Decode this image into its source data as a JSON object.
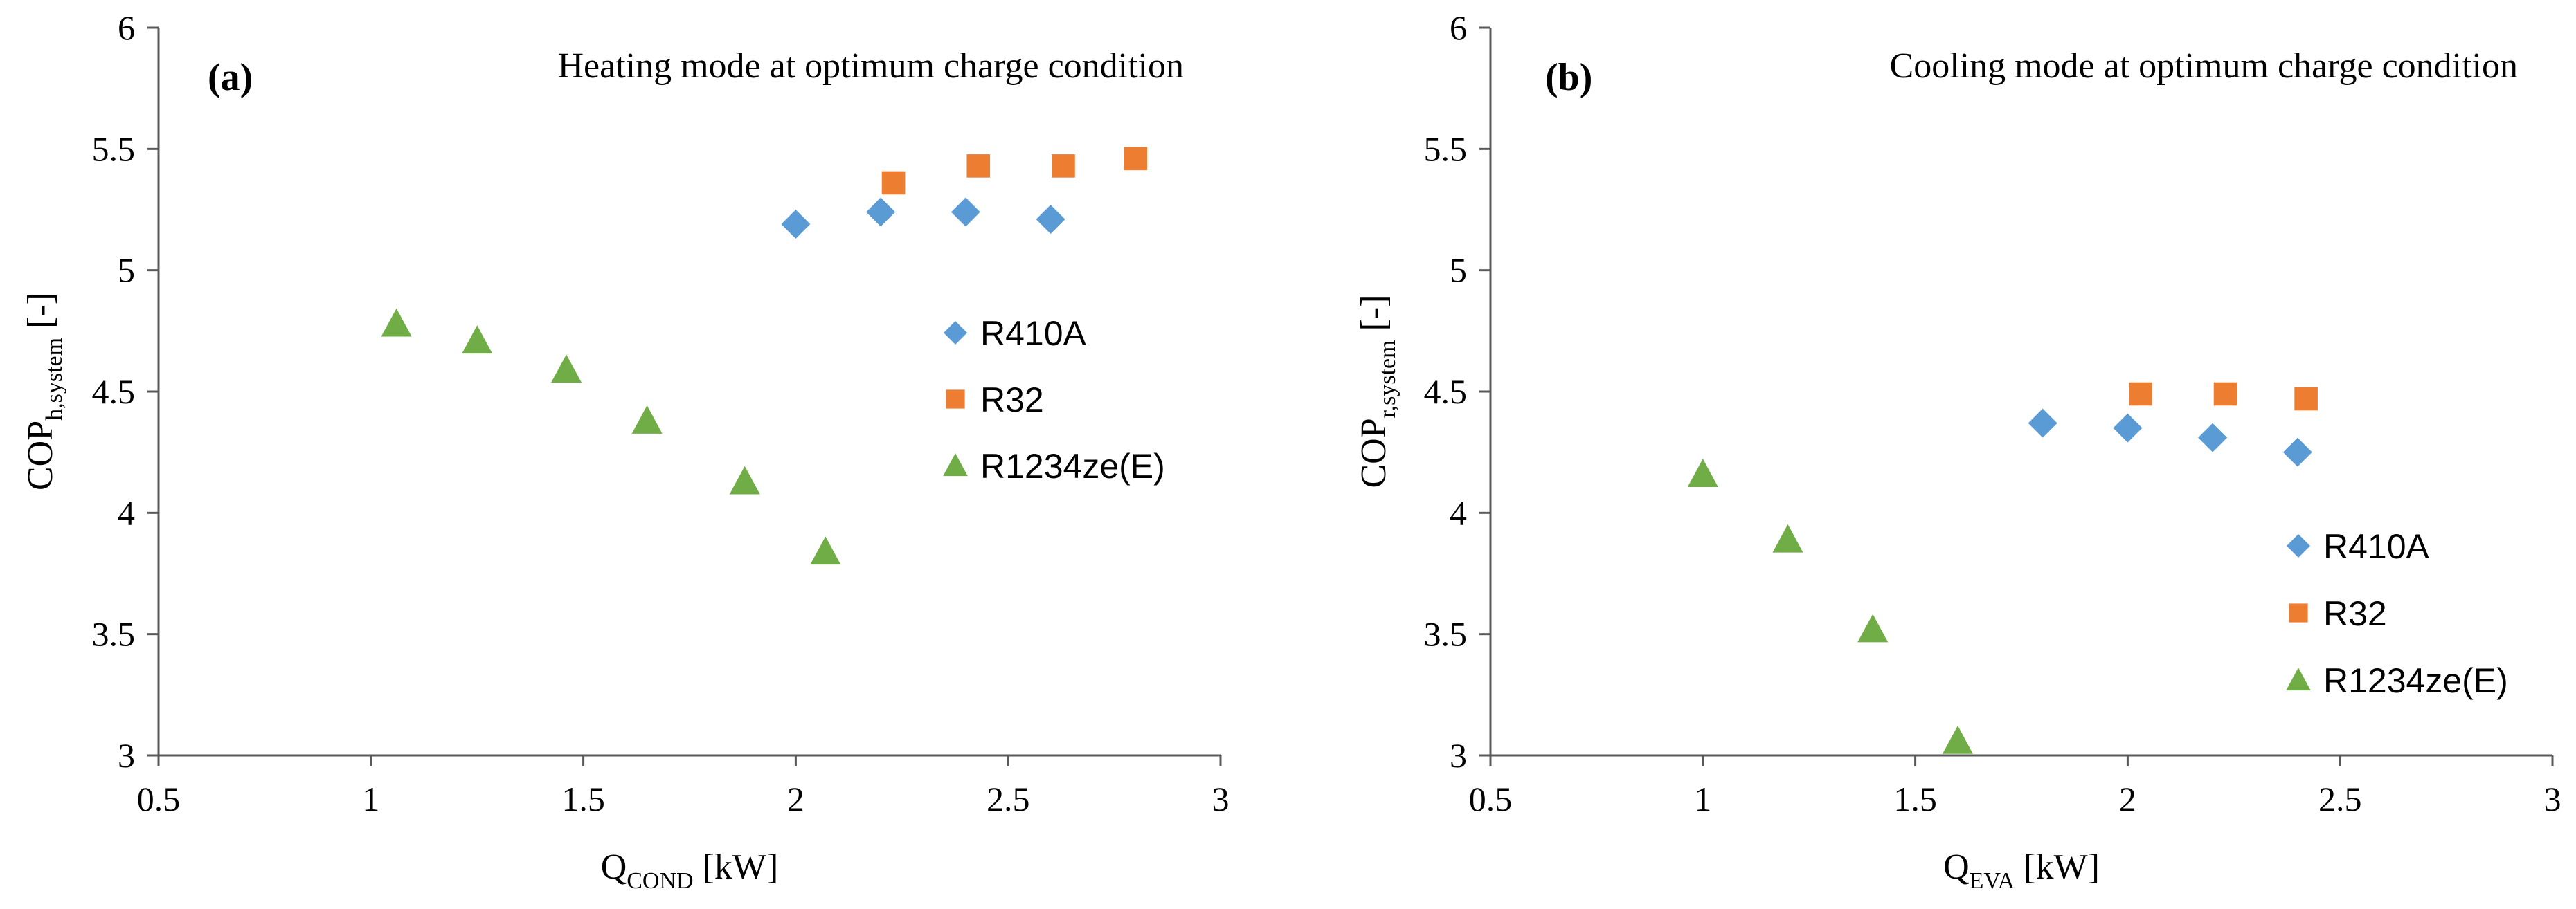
{
  "chart_data": [
    {
      "type": "scatter",
      "panel_label": "(a)",
      "annotation": "Heating mode at optimum charge condition",
      "xlabel": {
        "main": "Q",
        "sub": "COND",
        "rest": " [kW]"
      },
      "ylabel": {
        "main": "COP",
        "sub": "h,system",
        "rest": "  [-]"
      },
      "xlim": [
        0.5,
        3
      ],
      "ylim": [
        3,
        6
      ],
      "x_ticks": [
        0.5,
        1,
        1.5,
        2,
        2.5,
        3
      ],
      "y_ticks": [
        3,
        3.5,
        4,
        4.5,
        5,
        5.5,
        6
      ],
      "x_tick_labels": [
        "0.5",
        "1",
        "1.5",
        "2",
        "2.5",
        "3"
      ],
      "y_tick_labels": [
        "3",
        "3.5",
        "4",
        "4.5",
        "5",
        "5.5",
        "6"
      ],
      "grid": false,
      "legend_position": "middle-right",
      "series": [
        {
          "name": "R410A",
          "marker": "diamond",
          "color": "#5B9BD5",
          "x": [
            2.0,
            2.2,
            2.4,
            2.6
          ],
          "y": [
            5.19,
            5.24,
            5.24,
            5.21
          ]
        },
        {
          "name": "R32",
          "marker": "square",
          "color": "#ED7D31",
          "x": [
            2.23,
            2.43,
            2.63,
            2.8
          ],
          "y": [
            5.36,
            5.43,
            5.43,
            5.46
          ]
        },
        {
          "name": "R1234ze(E)",
          "marker": "triangle",
          "color": "#70AD47",
          "x": [
            1.06,
            1.25,
            1.46,
            1.65,
            1.88,
            2.07
          ],
          "y": [
            4.78,
            4.71,
            4.59,
            4.38,
            4.13,
            3.84
          ]
        }
      ]
    },
    {
      "type": "scatter",
      "panel_label": "(b)",
      "annotation": "Cooling mode at optimum charge condition",
      "xlabel": {
        "main": "Q",
        "sub": "EVA",
        "rest": " [kW]"
      },
      "ylabel": {
        "main": "COP",
        "sub": "r,system",
        "rest": "  [-]"
      },
      "xlim": [
        0.5,
        3
      ],
      "ylim": [
        3,
        6
      ],
      "x_ticks": [
        0.5,
        1,
        1.5,
        2,
        2.5,
        3
      ],
      "y_ticks": [
        3,
        3.5,
        4,
        4.5,
        5,
        5.5,
        6
      ],
      "x_tick_labels": [
        "0.5",
        "1",
        "1.5",
        "2",
        "2.5",
        "3"
      ],
      "y_tick_labels": [
        "3",
        "3.5",
        "4",
        "4.5",
        "5",
        "5.5",
        "6"
      ],
      "grid": false,
      "legend_position": "bottom-right",
      "series": [
        {
          "name": "R410A",
          "marker": "diamond",
          "color": "#5B9BD5",
          "x": [
            1.8,
            2.0,
            2.2,
            2.4
          ],
          "y": [
            4.37,
            4.35,
            4.31,
            4.25
          ]
        },
        {
          "name": "R32",
          "marker": "square",
          "color": "#ED7D31",
          "x": [
            2.03,
            2.23,
            2.42
          ],
          "y": [
            4.49,
            4.49,
            4.47
          ]
        },
        {
          "name": "R1234ze(E)",
          "marker": "triangle",
          "color": "#70AD47",
          "x": [
            1.0,
            1.2,
            1.4,
            1.6
          ],
          "y": [
            4.16,
            3.89,
            3.52,
            3.06
          ]
        }
      ]
    }
  ]
}
